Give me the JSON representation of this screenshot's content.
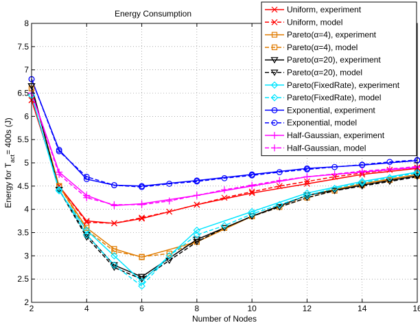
{
  "chart_data": {
    "type": "line",
    "title": "Energy Consumption",
    "xlabel": "Number of Nodes",
    "ylabel": {
      "prefix": "Energy for T",
      "subscript": "act",
      "suffix": "= 400s (J)"
    },
    "xlim": [
      2,
      16
    ],
    "ylim": [
      2,
      8
    ],
    "xticks": [
      2,
      4,
      6,
      8,
      10,
      12,
      14,
      16
    ],
    "yticks": [
      2,
      2.5,
      3,
      3.5,
      4,
      4.5,
      5,
      5.5,
      6,
      6.5,
      7,
      7.5,
      8
    ],
    "grid": true,
    "legend_position": "top-right",
    "series": [
      {
        "name": "Uniform, experiment",
        "color": "#ff0000",
        "marker": "x",
        "dash": "solid",
        "x": [
          2,
          3,
          4,
          5,
          6,
          8,
          10,
          12,
          14,
          16
        ],
        "y": [
          6.35,
          4.5,
          3.75,
          3.7,
          3.8,
          4.1,
          4.35,
          4.55,
          4.75,
          4.88
        ]
      },
      {
        "name": "Uniform, model",
        "color": "#ff0000",
        "marker": "x",
        "dash": "dashed",
        "x": [
          2,
          3,
          4,
          5,
          6,
          7,
          8,
          9,
          10,
          11,
          12,
          13,
          14,
          15,
          16
        ],
        "y": [
          6.35,
          4.5,
          3.72,
          3.7,
          3.82,
          3.95,
          4.1,
          4.25,
          4.38,
          4.5,
          4.6,
          4.7,
          4.78,
          4.85,
          4.9
        ]
      },
      {
        "name": "Pareto(α=4), experiment",
        "color": "#e07b00",
        "marker": "square",
        "dash": "solid",
        "x": [
          2,
          3,
          4,
          5,
          6,
          8,
          10,
          12,
          14,
          16
        ],
        "y": [
          6.6,
          4.5,
          3.6,
          3.15,
          2.97,
          3.3,
          3.85,
          4.3,
          4.55,
          4.75
        ]
      },
      {
        "name": "Pareto(α=4), model",
        "color": "#e07b00",
        "marker": "square",
        "dash": "dashed",
        "x": [
          2,
          3,
          4,
          5,
          6,
          7,
          8,
          9,
          10,
          11,
          12,
          13,
          14,
          15,
          16
        ],
        "y": [
          6.6,
          4.5,
          3.55,
          3.1,
          2.98,
          3.05,
          3.3,
          3.6,
          3.85,
          4.05,
          4.25,
          4.4,
          4.52,
          4.63,
          4.72
        ]
      },
      {
        "name": "Pareto(α=20), experiment",
        "color": "#000000",
        "marker": "triangle-down",
        "dash": "solid",
        "x": [
          2,
          3,
          4,
          5,
          6,
          8,
          10,
          12,
          14,
          16
        ],
        "y": [
          6.65,
          4.42,
          3.45,
          2.8,
          2.55,
          3.35,
          3.85,
          4.3,
          4.52,
          4.72
        ]
      },
      {
        "name": "Pareto(α=20), model",
        "color": "#000000",
        "marker": "triangle-down",
        "dash": "dashed",
        "x": [
          2,
          3,
          4,
          5,
          6,
          7,
          8,
          9,
          10,
          11,
          12,
          13,
          14,
          15,
          16
        ],
        "y": [
          6.65,
          4.42,
          3.4,
          2.75,
          2.5,
          2.9,
          3.3,
          3.6,
          3.85,
          4.05,
          4.25,
          4.4,
          4.5,
          4.6,
          4.7
        ]
      },
      {
        "name": "Pareto(FixedRate), experiment",
        "color": "#00e5ff",
        "marker": "diamond",
        "dash": "solid",
        "x": [
          2,
          3,
          4,
          5,
          6,
          8,
          10,
          12,
          14,
          16
        ],
        "y": [
          6.45,
          4.4,
          3.55,
          3.0,
          2.45,
          3.55,
          3.95,
          4.35,
          4.6,
          4.8
        ]
      },
      {
        "name": "Pareto(FixedRate), model",
        "color": "#00e5ff",
        "marker": "diamond",
        "dash": "dashed",
        "x": [
          2,
          3,
          4,
          5,
          6,
          7,
          8,
          9,
          10,
          11,
          12,
          13,
          14,
          15,
          16
        ],
        "y": [
          6.45,
          4.42,
          3.45,
          2.8,
          2.35,
          3.0,
          3.45,
          3.65,
          3.9,
          4.1,
          4.3,
          4.45,
          4.57,
          4.68,
          4.78
        ]
      },
      {
        "name": "Exponential, experiment",
        "color": "#0000ff",
        "marker": "circle",
        "dash": "solid",
        "x": [
          2,
          3,
          4,
          5,
          6,
          8,
          10,
          12,
          14,
          16
        ],
        "y": [
          6.8,
          5.28,
          4.65,
          4.52,
          4.5,
          4.62,
          4.75,
          4.88,
          4.95,
          5.05
        ]
      },
      {
        "name": "Exponential, model",
        "color": "#0000ff",
        "marker": "circle",
        "dash": "dashed",
        "x": [
          2,
          3,
          4,
          5,
          6,
          7,
          8,
          9,
          10,
          11,
          12,
          13,
          14,
          15,
          16
        ],
        "y": [
          6.8,
          5.25,
          4.7,
          4.52,
          4.48,
          4.55,
          4.6,
          4.67,
          4.73,
          4.8,
          4.86,
          4.91,
          4.96,
          5.02,
          5.06
        ]
      },
      {
        "name": "Half-Gaussian, experiment",
        "color": "#ff00ff",
        "marker": "plus",
        "dash": "solid",
        "x": [
          2,
          3,
          4,
          5,
          6,
          8,
          10,
          12,
          14,
          16
        ],
        "y": [
          6.5,
          4.8,
          4.3,
          4.08,
          4.12,
          4.3,
          4.5,
          4.7,
          4.8,
          4.9
        ]
      },
      {
        "name": "Half-Gaussian, model",
        "color": "#ff00ff",
        "marker": "plus",
        "dash": "dashed",
        "x": [
          2,
          3,
          4,
          5,
          6,
          7,
          8,
          9,
          10,
          11,
          12,
          13,
          14,
          15,
          16
        ],
        "y": [
          6.5,
          4.75,
          4.25,
          4.1,
          4.1,
          4.18,
          4.3,
          4.42,
          4.52,
          4.62,
          4.7,
          4.76,
          4.82,
          4.87,
          4.92
        ]
      }
    ]
  }
}
